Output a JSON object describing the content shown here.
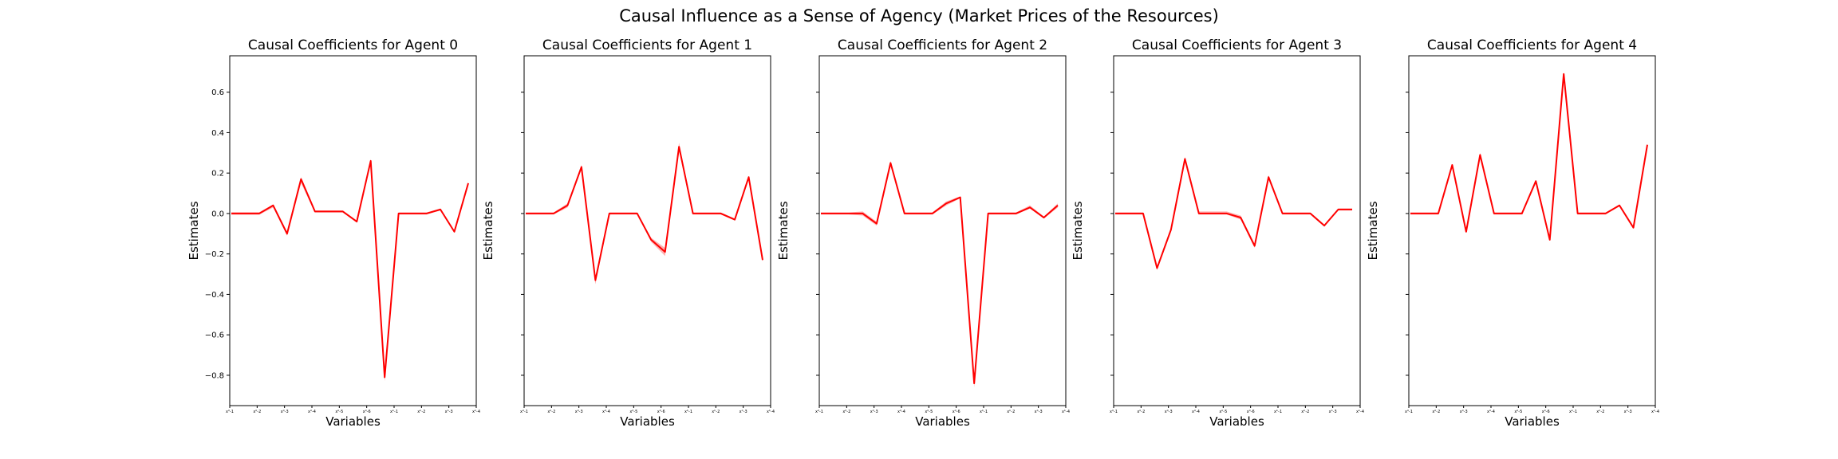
{
  "suptitle": "Causal Influence as a Sense of Agency (Market Prices of the Resources)",
  "chart_data": [
    {
      "type": "line",
      "title": "Causal Coefficients for Agent 0",
      "xlabel": "Variables",
      "ylabel": "Estimates",
      "ylim": [
        -0.95,
        0.78
      ],
      "yticks": [
        0.6,
        0.4,
        0.2,
        0.0,
        -0.2,
        -0.4,
        -0.6,
        -0.8
      ],
      "ytick_labels": [
        "0.6",
        "0.4",
        "0.2",
        "0.0",
        "−0.2",
        "−0.4",
        "−0.6",
        "−0.8"
      ],
      "show_ytick_labels": true,
      "xticks": [
        "x⁰-1",
        "x⁰-2",
        "x⁰-3",
        "x⁰-4",
        "x⁰-5",
        "x⁰-6",
        "xᵇ-1",
        "xᵇ-2",
        "xᵇ-3",
        "xᵇ-4"
      ],
      "series": [
        {
          "color": "#ff0000",
          "values": [
            0.0,
            0.0,
            0.0,
            0.04,
            -0.1,
            0.17,
            0.01,
            0.01,
            0.01,
            -0.04,
            0.26,
            -0.81,
            0.0,
            0.0,
            0.0,
            0.02,
            -0.09,
            0.15
          ],
          "lower": [
            -0.006,
            -0.006,
            -0.006,
            0.03,
            -0.11,
            0.15,
            0.005,
            0.005,
            0.005,
            -0.045,
            0.25,
            -0.83,
            -0.005,
            -0.005,
            -0.005,
            0.015,
            -0.095,
            0.145
          ],
          "upper": [
            0.006,
            0.006,
            0.006,
            0.045,
            -0.09,
            0.18,
            0.015,
            0.015,
            0.015,
            -0.035,
            0.27,
            -0.79,
            0.005,
            0.005,
            0.005,
            0.025,
            -0.085,
            0.155
          ]
        }
      ]
    },
    {
      "type": "line",
      "title": "Causal Coefficients for Agent 1",
      "xlabel": "Variables",
      "ylabel": "Estimates",
      "ylim": [
        -0.95,
        0.78
      ],
      "yticks": [
        0.6,
        0.4,
        0.2,
        0.0,
        -0.2,
        -0.4,
        -0.6,
        -0.8
      ],
      "show_ytick_labels": false,
      "xticks": [
        "x⁰-1",
        "x⁰-2",
        "x⁰-3",
        "x⁰-4",
        "x⁰-5",
        "x⁰-6",
        "xᵇ-1",
        "xᵇ-2",
        "xᵇ-3",
        "xᵇ-4"
      ],
      "series": [
        {
          "color": "#ff0000",
          "values": [
            0.0,
            0.0,
            0.0,
            0.04,
            0.23,
            -0.33,
            0.0,
            0.0,
            0.0,
            -0.13,
            -0.19,
            0.33,
            0.0,
            0.0,
            0.0,
            -0.03,
            0.18,
            -0.23
          ],
          "lower": [
            -0.005,
            -0.005,
            -0.005,
            0.03,
            0.22,
            -0.35,
            -0.005,
            -0.005,
            -0.005,
            -0.14,
            -0.21,
            0.31,
            -0.005,
            -0.005,
            -0.005,
            -0.035,
            0.175,
            -0.235
          ],
          "upper": [
            0.005,
            0.005,
            0.005,
            0.05,
            0.24,
            -0.31,
            0.005,
            0.005,
            0.005,
            -0.12,
            -0.17,
            0.35,
            0.005,
            0.005,
            0.005,
            -0.025,
            0.185,
            -0.225
          ]
        }
      ]
    },
    {
      "type": "line",
      "title": "Causal Coefficients for Agent 2",
      "xlabel": "Variables",
      "ylabel": "Estimates",
      "ylim": [
        -0.95,
        0.78
      ],
      "yticks": [
        0.6,
        0.4,
        0.2,
        0.0,
        -0.2,
        -0.4,
        -0.6,
        -0.8
      ],
      "show_ytick_labels": false,
      "xticks": [
        "x⁰-1",
        "x⁰-2",
        "x⁰-3",
        "x⁰-4",
        "x⁰-5",
        "x⁰-6",
        "xᵇ-1",
        "xᵇ-2",
        "xᵇ-3",
        "xᵇ-4"
      ],
      "series": [
        {
          "color": "#ff0000",
          "values": [
            0.0,
            0.0,
            0.0,
            0.0,
            -0.05,
            0.25,
            0.0,
            0.0,
            0.0,
            0.05,
            0.08,
            -0.84,
            0.0,
            0.0,
            0.0,
            0.03,
            -0.02,
            0.04
          ],
          "lower": [
            -0.005,
            -0.005,
            -0.005,
            -0.01,
            -0.06,
            0.24,
            -0.005,
            -0.005,
            -0.005,
            0.04,
            0.075,
            -0.86,
            -0.005,
            -0.005,
            -0.005,
            0.025,
            -0.025,
            0.03
          ],
          "upper": [
            0.005,
            0.005,
            0.005,
            0.01,
            -0.04,
            0.26,
            0.005,
            0.005,
            0.005,
            0.06,
            0.085,
            -0.82,
            0.005,
            0.005,
            0.005,
            0.04,
            -0.015,
            0.05
          ]
        }
      ]
    },
    {
      "type": "line",
      "title": "Causal Coefficients for Agent 3",
      "xlabel": "Variables",
      "ylabel": "Estimates",
      "ylim": [
        -0.95,
        0.78
      ],
      "yticks": [
        0.6,
        0.4,
        0.2,
        0.0,
        -0.2,
        -0.4,
        -0.6,
        -0.8
      ],
      "show_ytick_labels": false,
      "xticks": [
        "x⁰-1",
        "x⁰-2",
        "x⁰-3",
        "x⁰-4",
        "x⁰-5",
        "x⁰-6",
        "xᵇ-1",
        "xᵇ-2",
        "xᵇ-3",
        "xᵇ-4"
      ],
      "series": [
        {
          "color": "#ff0000",
          "values": [
            0.0,
            0.0,
            0.0,
            -0.27,
            -0.08,
            0.27,
            0.0,
            0.0,
            0.0,
            -0.02,
            -0.16,
            0.18,
            0.0,
            0.0,
            0.0,
            -0.06,
            0.02,
            0.02
          ],
          "lower": [
            -0.005,
            -0.005,
            -0.005,
            -0.28,
            -0.085,
            0.26,
            -0.005,
            -0.005,
            -0.005,
            -0.03,
            -0.17,
            0.17,
            -0.005,
            -0.005,
            -0.005,
            -0.065,
            0.015,
            0.015
          ],
          "upper": [
            0.005,
            0.005,
            0.005,
            -0.26,
            -0.075,
            0.28,
            0.01,
            0.01,
            0.01,
            -0.01,
            -0.15,
            0.19,
            0.005,
            0.005,
            0.005,
            -0.055,
            0.025,
            0.025
          ]
        }
      ]
    },
    {
      "type": "line",
      "title": "Causal Coefficients for Agent 4",
      "xlabel": "Variables",
      "ylabel": "Estimates",
      "ylim": [
        -0.95,
        0.78
      ],
      "yticks": [
        0.6,
        0.4,
        0.2,
        0.0,
        -0.2,
        -0.4,
        -0.6,
        -0.8
      ],
      "show_ytick_labels": false,
      "xticks": [
        "x⁰-1",
        "x⁰-2",
        "x⁰-3",
        "x⁰-4",
        "x⁰-5",
        "x⁰-6",
        "xᵇ-1",
        "xᵇ-2",
        "xᵇ-3",
        "xᵇ-4"
      ],
      "series": [
        {
          "color": "#ff0000",
          "values": [
            0.0,
            0.0,
            0.0,
            0.24,
            -0.09,
            0.29,
            0.0,
            0.0,
            0.0,
            0.16,
            -0.13,
            0.69,
            0.0,
            0.0,
            0.0,
            0.04,
            -0.07,
            0.34
          ],
          "lower": [
            -0.005,
            -0.005,
            -0.005,
            0.235,
            -0.095,
            0.28,
            -0.005,
            -0.005,
            -0.005,
            0.155,
            -0.135,
            0.68,
            -0.005,
            -0.005,
            -0.005,
            0.035,
            -0.075,
            0.335
          ],
          "upper": [
            0.005,
            0.005,
            0.005,
            0.245,
            -0.085,
            0.3,
            0.005,
            0.005,
            0.005,
            0.165,
            -0.125,
            0.7,
            0.005,
            0.005,
            0.005,
            0.045,
            -0.065,
            0.345
          ]
        }
      ]
    }
  ]
}
